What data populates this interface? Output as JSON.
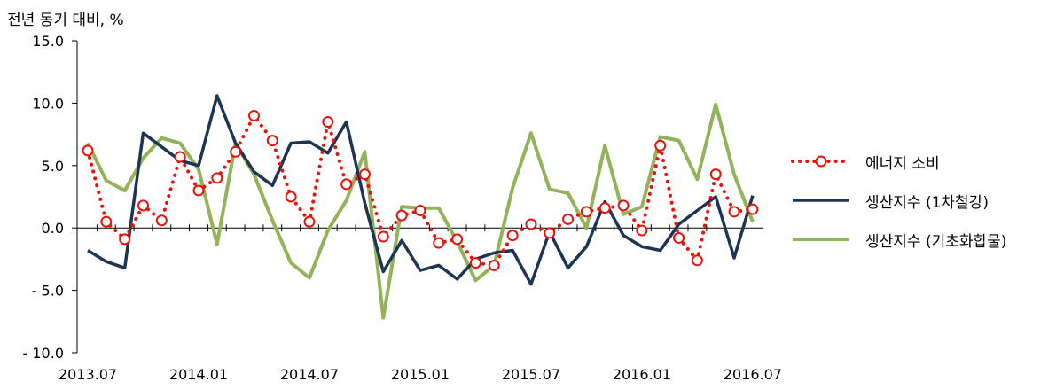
{
  "chart_data": {
    "type": "line",
    "ylabel": "전년 동기 대비, %",
    "ylim": [
      -10,
      15
    ],
    "y_ticks": [
      "15.0",
      "10.0",
      "5.0",
      "0.0",
      "- 5.0",
      "- 10.0"
    ],
    "y_tick_values": [
      15,
      10,
      5,
      0,
      -5,
      -10
    ],
    "x_ticks": [
      {
        "label": "2013.07",
        "index": 0
      },
      {
        "label": "2014.01",
        "index": 6
      },
      {
        "label": "2014.07",
        "index": 12
      },
      {
        "label": "2015.01",
        "index": 18
      },
      {
        "label": "2015.07",
        "index": 24
      },
      {
        "label": "2016.01",
        "index": 30
      },
      {
        "label": "2016.07",
        "index": 36
      }
    ],
    "legend_position": "right",
    "series": [
      {
        "name": "에너지 소비",
        "style": "dotted-circle",
        "color": "#e8130c",
        "values": [
          6.2,
          0.5,
          -0.9,
          1.8,
          0.6,
          5.7,
          3.0,
          4.0,
          6.1,
          9.0,
          7.0,
          2.5,
          0.5,
          8.5,
          3.5,
          4.3,
          -0.7,
          1.0,
          1.4,
          -1.2,
          -0.9,
          -2.8,
          -3.0,
          -0.6,
          0.3,
          -0.4,
          0.7,
          1.3,
          1.6,
          1.8,
          -0.2,
          6.6,
          -0.8,
          -2.6,
          4.3,
          1.3,
          1.5
        ]
      },
      {
        "name": "생산지수 (1차철강)",
        "style": "solid",
        "color": "#1c3553",
        "values": [
          -1.8,
          -2.7,
          -3.2,
          7.6,
          6.5,
          5.4,
          5.0,
          10.6,
          6.8,
          4.5,
          3.4,
          6.8,
          6.9,
          6.0,
          8.5,
          2.0,
          -3.5,
          -1.0,
          -3.4,
          -3.0,
          -4.1,
          -2.5,
          -2.0,
          -1.8,
          -4.5,
          -0.3,
          -3.2,
          -1.5,
          2.1,
          -0.6,
          -1.5,
          -1.8,
          0.3,
          1.4,
          2.5,
          -2.4,
          2.6
        ]
      },
      {
        "name": "생산지수 (기초화합물)",
        "style": "solid",
        "color": "#92b359",
        "values": [
          6.8,
          3.8,
          3.0,
          5.6,
          7.2,
          6.8,
          4.7,
          -1.3,
          6.8,
          4.3,
          0.6,
          -2.8,
          -4.0,
          -0.2,
          2.2,
          6.1,
          -7.2,
          1.7,
          1.6,
          1.6,
          -1.1,
          -4.2,
          -3.0,
          3.2,
          7.6,
          3.1,
          2.8,
          0.0,
          6.6,
          1.1,
          1.7,
          7.3,
          7.0,
          3.9,
          9.9,
          4.3,
          0.5
        ]
      }
    ]
  }
}
